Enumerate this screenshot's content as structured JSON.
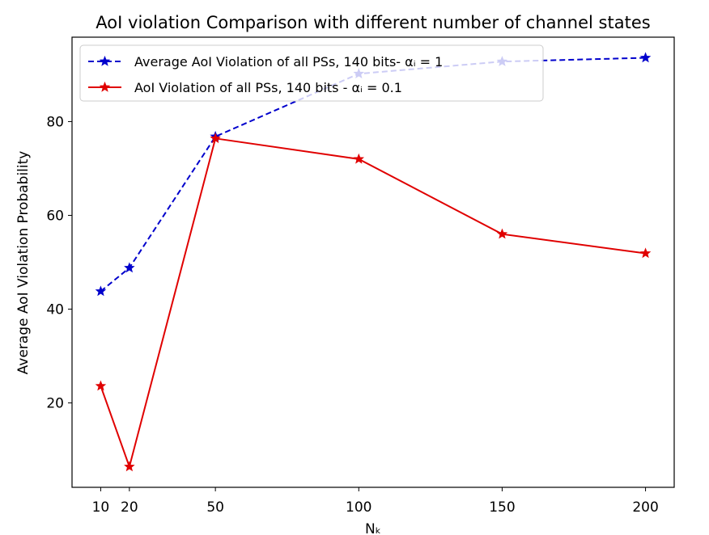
{
  "chart_data": {
    "type": "line",
    "title": "AoI violation Comparison with different number of channel states",
    "xlabel": "Nₖ",
    "ylabel": "Average AoI Violation Probability",
    "x": [
      10,
      20,
      50,
      100,
      150,
      200
    ],
    "xlim": [
      0,
      210
    ],
    "ylim": [
      2,
      98
    ],
    "xticks": [
      "10",
      "20",
      "50",
      "100",
      "150",
      "200"
    ],
    "yticks": [
      "20",
      "40",
      "60",
      "80"
    ],
    "grid": false,
    "legend_position": "top-left",
    "series": [
      {
        "name": "Average AoI Violation of all PSs, 140 bits- αᵢ = 1",
        "values": [
          43.8,
          48.8,
          76.8,
          90.2,
          92.8,
          93.6
        ],
        "color": "#0000cc",
        "line_style": "dashed",
        "marker": "star"
      },
      {
        "name": "AoI Violation of all PSs, 140 bits - αᵢ = 0.1",
        "values": [
          23.6,
          6.4,
          76.4,
          72.0,
          56.0,
          51.9
        ],
        "color": "#e00000",
        "line_style": "solid",
        "marker": "star"
      }
    ]
  }
}
